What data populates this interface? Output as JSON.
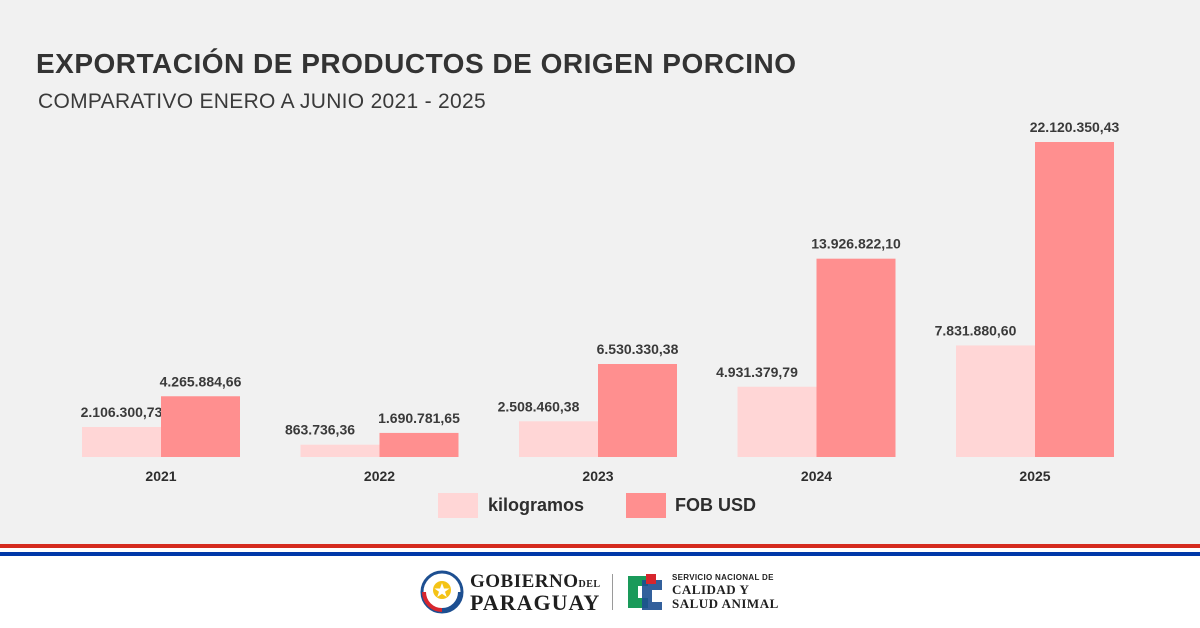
{
  "header": {
    "title": "EXPORTACIÓN DE PRODUCTOS DE ORIGEN PORCINO",
    "subtitle": "COMPARATIVO ENERO A JUNIO 2021 - 2025"
  },
  "chart_data": {
    "type": "bar",
    "title": "EXPORTACIÓN DE PRODUCTOS DE ORIGEN PORCINO",
    "subtitle": "COMPARATIVO ENERO A JUNIO 2021 - 2025",
    "categories": [
      "2021",
      "2022",
      "2023",
      "2024",
      "2025"
    ],
    "series": [
      {
        "name": "kilogramos",
        "color": "#ffd6d6",
        "values": [
          2106300.73,
          863736.36,
          2508460.38,
          4931379.79,
          7831880.6
        ],
        "labels": [
          "2.106.300,73",
          "863.736,36",
          "2.508.460,38",
          "4.931.379,79",
          "7.831.880,60"
        ]
      },
      {
        "name": "FOB USD",
        "color": "#ff8f8f",
        "values": [
          4265884.66,
          1690781.65,
          6530330.38,
          13926822.1,
          22120350.43
        ],
        "labels": [
          "4.265.884,66",
          "1.690.781,65",
          "6.530.330,38",
          "13.926.822,10",
          "22.120.350,43"
        ]
      }
    ],
    "ylim": [
      0,
      22120350.43
    ],
    "grid": false,
    "legend": "bottom-center"
  },
  "footer": {
    "gov_line1": "GOBIERNO",
    "gov_del": "DEL",
    "gov_line2": "PARAGUAY",
    "senacsa_line1": "SERVICIO NACIONAL DE",
    "senacsa_line2": "CALIDAD Y",
    "senacsa_line3": "SALUD ANIMAL"
  },
  "colors": {
    "panel_bg": "#f1f1f1",
    "stripe_red": "#d52b1e",
    "stripe_blue": "#0038a8",
    "senacsa_green": "#1a9a5a",
    "senacsa_red": "#d7262e",
    "senacsa_blue": "#1d4f91"
  }
}
